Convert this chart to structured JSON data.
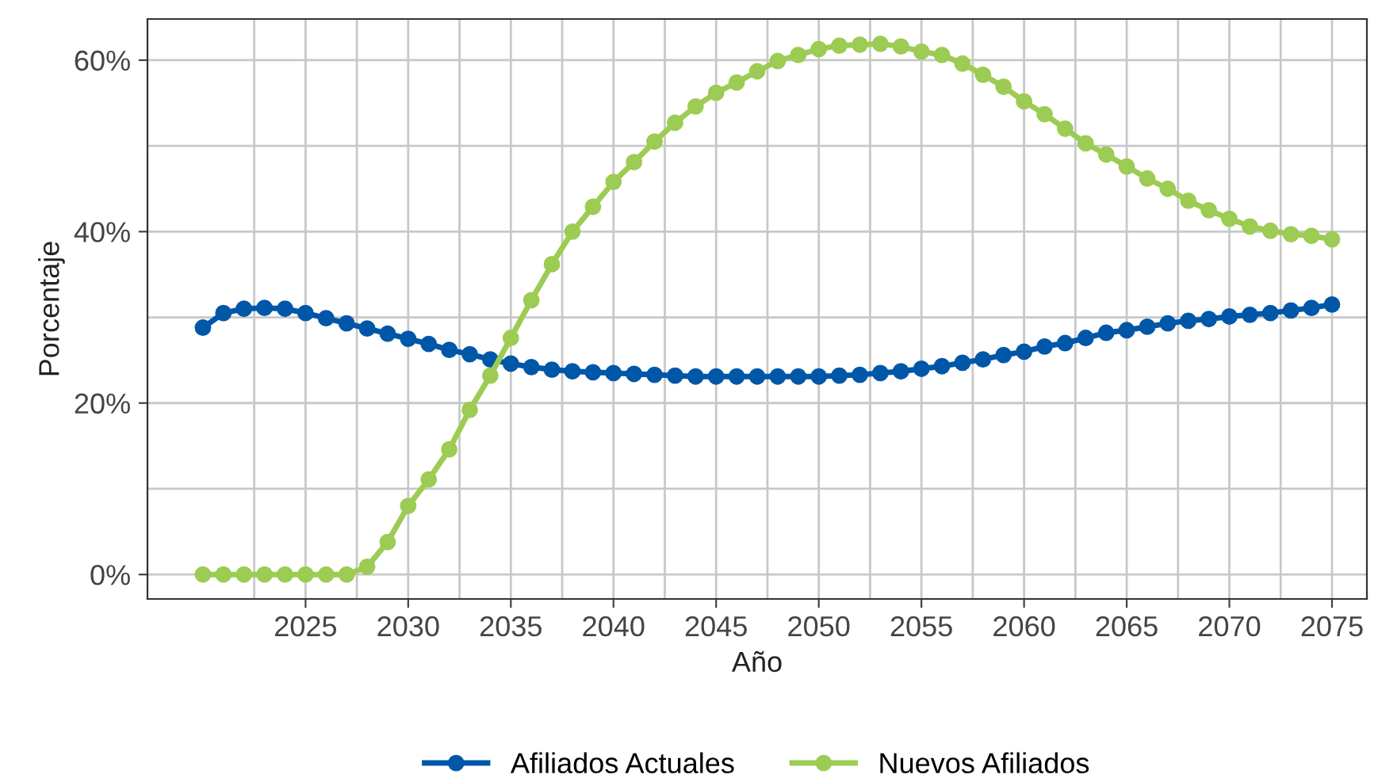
{
  "chart_data": {
    "type": "line",
    "xlabel": "Año",
    "ylabel": "Porcentaje",
    "x": [
      2020,
      2021,
      2022,
      2023,
      2024,
      2025,
      2026,
      2027,
      2028,
      2029,
      2030,
      2031,
      2032,
      2033,
      2034,
      2035,
      2036,
      2037,
      2038,
      2039,
      2040,
      2041,
      2042,
      2043,
      2044,
      2045,
      2046,
      2047,
      2048,
      2049,
      2050,
      2051,
      2052,
      2053,
      2054,
      2055,
      2056,
      2057,
      2058,
      2059,
      2060,
      2061,
      2062,
      2063,
      2064,
      2065,
      2066,
      2067,
      2068,
      2069,
      2070,
      2071,
      2072,
      2073,
      2074,
      2075
    ],
    "series": [
      {
        "name": "Afiliados Actuales",
        "color": "#0057a8",
        "values": [
          28.8,
          30.5,
          31.0,
          31.1,
          31.0,
          30.5,
          29.9,
          29.3,
          28.7,
          28.1,
          27.5,
          26.9,
          26.2,
          25.7,
          25.1,
          24.6,
          24.2,
          23.9,
          23.7,
          23.6,
          23.5,
          23.4,
          23.3,
          23.2,
          23.1,
          23.1,
          23.1,
          23.1,
          23.1,
          23.1,
          23.1,
          23.2,
          23.3,
          23.5,
          23.7,
          24.0,
          24.3,
          24.7,
          25.1,
          25.6,
          26.0,
          26.6,
          27.0,
          27.6,
          28.2,
          28.5,
          28.9,
          29.3,
          29.6,
          29.8,
          30.1,
          30.3,
          30.5,
          30.8,
          31.1,
          31.5
        ]
      },
      {
        "name": "Nuevos Afiliados",
        "color": "#9ccc53",
        "values": [
          0,
          0,
          0,
          0,
          0,
          0,
          0,
          0,
          0.9,
          3.8,
          8.0,
          11.1,
          14.6,
          19.2,
          23.2,
          27.6,
          32.0,
          36.2,
          40.0,
          42.9,
          45.8,
          48.1,
          50.5,
          52.7,
          54.6,
          56.2,
          57.4,
          58.7,
          59.9,
          60.6,
          61.3,
          61.7,
          61.8,
          61.9,
          61.6,
          61.0,
          60.6,
          59.6,
          58.3,
          56.9,
          55.2,
          53.7,
          52.0,
          50.3,
          49.0,
          47.6,
          46.2,
          45.0,
          43.6,
          42.5,
          41.5,
          40.6,
          40.1,
          39.7,
          39.5,
          39.1
        ]
      }
    ],
    "xlim": [
      2017.3,
      2076.7
    ],
    "ylim": [
      -2.85,
      64.8
    ],
    "xticks": [
      {
        "value": 2022.5,
        "label": null
      },
      2025,
      {
        "value": 2027.5,
        "label": null
      },
      2030,
      {
        "value": 2032.5,
        "label": null
      },
      2035,
      {
        "value": 2037.5,
        "label": null
      },
      2040,
      {
        "value": 2042.5,
        "label": null
      },
      2045,
      {
        "value": 2047.5,
        "label": null
      },
      2050,
      {
        "value": 2052.5,
        "label": null
      },
      2055,
      {
        "value": 2057.5,
        "label": null
      },
      2060,
      {
        "value": 2062.5,
        "label": null
      },
      2065,
      {
        "value": 2067.5,
        "label": null
      },
      2070,
      {
        "value": 2072.5,
        "label": null
      },
      2075
    ],
    "yticks": [
      {
        "value": 0,
        "label": "0%"
      },
      {
        "value": 10,
        "label": null
      },
      {
        "value": 20,
        "label": "20%"
      },
      {
        "value": 30,
        "label": null
      },
      {
        "value": 40,
        "label": "40%"
      },
      {
        "value": 50,
        "label": null
      },
      {
        "value": 60,
        "label": "60%"
      }
    ],
    "grid": true,
    "legend": "bottom",
    "marker": "circle",
    "line_style": "solid"
  }
}
